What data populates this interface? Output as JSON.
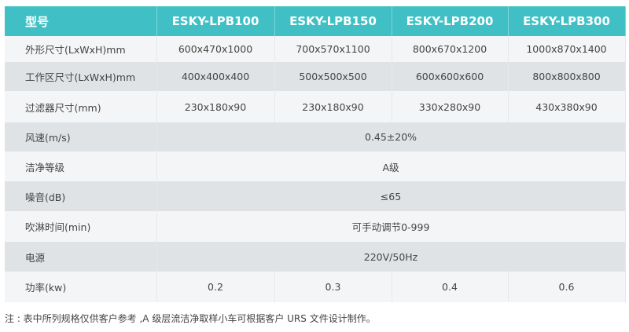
{
  "table": {
    "headers": [
      "型号",
      "ESKY-LPB100",
      "ESKY-LPB150",
      "ESKY-LPB200",
      "ESKY-LPB300"
    ],
    "rows": [
      {
        "label": "外形尺寸(LxWxH)mm",
        "values": [
          "600x470x1000",
          "700x570x1100",
          "800x670x1200",
          "1000x870x1400"
        ]
      },
      {
        "label": "工作区尺寸(LxWxH)mm",
        "values": [
          "400x400x400",
          "500x500x500",
          "600x600x600",
          "800x800x800"
        ]
      },
      {
        "label": "过滤器尺寸(mm)",
        "values": [
          "230x180x90",
          "230x180x90",
          "330x280x90",
          "430x380x90"
        ]
      },
      {
        "label": "风速(m/s)",
        "merged": "0.45±20%"
      },
      {
        "label": "洁净等级",
        "merged": "A级"
      },
      {
        "label": "噪音(dB)",
        "merged": "≤65"
      },
      {
        "label": "吹淋时间(min)",
        "merged": "可手动调节0-999"
      },
      {
        "label": "电源",
        "merged": "220V/50Hz"
      },
      {
        "label": "功率(kw)",
        "values": [
          "0.2",
          "0.3",
          "0.4",
          "0.6"
        ]
      }
    ]
  },
  "note": "注 : 表中所列规格仅供客户参考 ,A 级层流洁净取样小车可根据客户 URS 文件设计制作。",
  "colors": {
    "header": "#40c0c5",
    "row_light": "#f4f5f6",
    "row_dark": "#dfe3e6"
  }
}
